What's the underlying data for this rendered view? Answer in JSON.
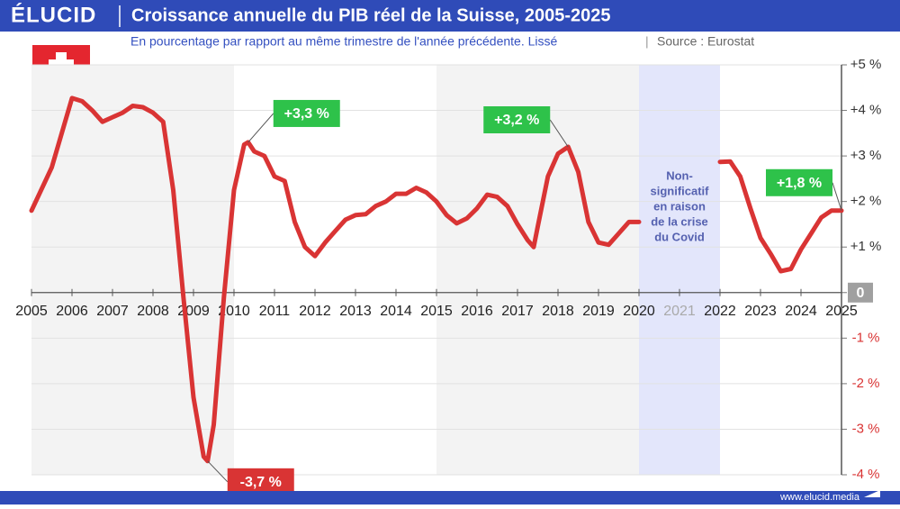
{
  "header": {
    "logo": "ÉLUCID",
    "title": "Croissance annuelle du PIB réel de la Suisse, 2005-2025",
    "subtitle": "En pourcentage par rapport au même trimestre de l'année précédente. Lissé",
    "separator": "|",
    "source": "Source : Eurostat"
  },
  "footer": {
    "url": "www.elucid.media"
  },
  "chart_data": {
    "type": "line",
    "color": "#d93434",
    "xlim": [
      2005,
      2025
    ],
    "ylim": [
      -4,
      5
    ],
    "grid": true,
    "xticks": [
      2005,
      2006,
      2007,
      2008,
      2009,
      2010,
      2011,
      2012,
      2013,
      2014,
      2015,
      2016,
      2017,
      2018,
      2019,
      2020,
      2021,
      2022,
      2023,
      2024,
      2025
    ],
    "yticks": [
      {
        "value": 5,
        "label": "+5 %"
      },
      {
        "value": 4,
        "label": "+4 %"
      },
      {
        "value": 3,
        "label": "+3 %"
      },
      {
        "value": 2,
        "label": "+2 %"
      },
      {
        "value": 1,
        "label": "+1 %"
      },
      0,
      {
        "value": -1,
        "label": "-1 %"
      },
      {
        "value": -2,
        "label": "-2 %"
      },
      {
        "value": -3,
        "label": "-3 %"
      },
      {
        "value": -4,
        "label": "-4 %"
      }
    ],
    "shaded_ranges": [
      {
        "from": 2005,
        "to": 2010,
        "color": "#f3f3f3"
      },
      {
        "from": 2015,
        "to": 2020,
        "color": "#f3f3f3"
      },
      {
        "from": 2020,
        "to": 2022,
        "color": "#e3e6fb",
        "note": [
          "Non-",
          "significatif",
          "en raison",
          "de la crise",
          "du Covid"
        ]
      }
    ],
    "x": [
      2005,
      2005.5,
      2006,
      2006.25,
      2006.5,
      2006.75,
      2007,
      2007.25,
      2007.5,
      2007.75,
      2008,
      2008.25,
      2008.5,
      2008.75,
      2009,
      2009.25,
      2009.35,
      2009.5,
      2009.75,
      2010,
      2010.25,
      2010.35,
      2010.5,
      2010.75,
      2011,
      2011.25,
      2011.5,
      2011.75,
      2012,
      2012.25,
      2012.5,
      2012.75,
      2013,
      2013.25,
      2013.5,
      2013.75,
      2014,
      2014.25,
      2014.5,
      2014.75,
      2015,
      2015.25,
      2015.5,
      2015.75,
      2016,
      2016.25,
      2016.5,
      2016.75,
      2017,
      2017.25,
      2017.4,
      2017.5,
      2017.75,
      2018,
      2018.25,
      2018.5,
      2018.75,
      2019,
      2019.25,
      2019.5,
      2019.75,
      2020,
      2021,
      2022,
      2022.25,
      2022.5,
      2022.75,
      2023,
      2023.25,
      2023.5,
      2023.75,
      2024,
      2024.25,
      2024.5,
      2024.75,
      2025
    ],
    "values": [
      1.8,
      2.75,
      4.27,
      4.2,
      4.0,
      3.75,
      3.85,
      3.95,
      4.1,
      4.07,
      3.95,
      3.75,
      2.25,
      -0.1,
      -2.3,
      -3.6,
      -3.7,
      -2.9,
      -0.1,
      2.25,
      3.25,
      3.3,
      3.1,
      3.0,
      2.55,
      2.45,
      1.55,
      1.0,
      0.8,
      1.1,
      1.35,
      1.6,
      1.7,
      1.72,
      1.9,
      2.0,
      2.17,
      2.17,
      2.3,
      2.2,
      2.0,
      1.7,
      1.52,
      1.63,
      1.85,
      2.15,
      2.1,
      1.9,
      1.5,
      1.15,
      1.0,
      1.45,
      2.55,
      3.05,
      3.2,
      2.65,
      1.55,
      1.1,
      1.05,
      1.3,
      1.55,
      1.55,
      null,
      2.87,
      2.88,
      2.55,
      1.85,
      1.2,
      0.85,
      0.47,
      0.52,
      0.95,
      1.3,
      1.65,
      1.8,
      1.8
    ],
    "annotations": [
      {
        "text": "+3,3 %",
        "x": 2010.35,
        "y": 3.3,
        "color": "#2ec24a"
      },
      {
        "text": "-3,7 %",
        "x": 2009.35,
        "y": -3.7,
        "color": "#d93434"
      },
      {
        "text": "+3,2 %",
        "x": 2018.25,
        "y": 3.2,
        "color": "#2ec24a"
      },
      {
        "text": "+1,8 %",
        "x": 2025,
        "y": 1.8,
        "color": "#2ec24a"
      }
    ]
  }
}
